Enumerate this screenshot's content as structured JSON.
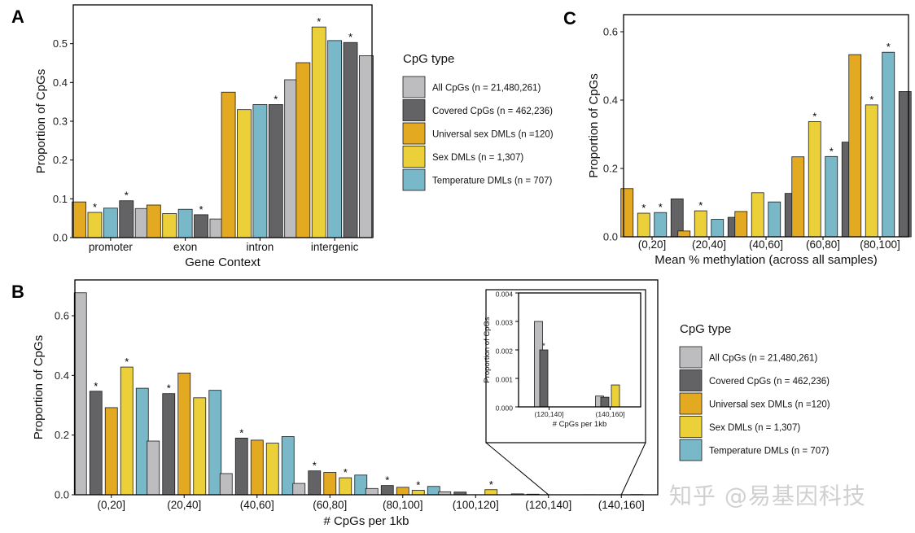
{
  "colors": {
    "All CpGs": "#bdbdbf",
    "Covered CpGs": "#636365",
    "Universal sex DMLs": "#e2a921",
    "Sex DMLs": "#ecd039",
    "Temperature DMLs": "#78b8c8"
  },
  "watermark": "知乎 @易基因科技",
  "chart_data": [
    {
      "id": "A",
      "panel_label": "A",
      "type": "bar",
      "xlabel": "Gene Context",
      "ylabel": "Proportion of CpGs",
      "ylim": [
        0,
        0.6
      ],
      "yticks": [
        "0.0",
        "0.1",
        "0.2",
        "0.3",
        "0.4",
        "0.5"
      ],
      "categories": [
        "promoter",
        "exon",
        "intron",
        "intergenic"
      ],
      "series": [
        {
          "name": "Universal sex DMLs",
          "values": [
            0.092,
            0.084,
            0.375,
            0.451
          ],
          "stars": [
            false,
            false,
            false,
            false
          ]
        },
        {
          "name": "Sex DMLs",
          "values": [
            0.065,
            0.062,
            0.33,
            0.543
          ],
          "stars": [
            true,
            false,
            false,
            true
          ]
        },
        {
          "name": "Temperature DMLs",
          "values": [
            0.076,
            0.073,
            0.343,
            0.508
          ],
          "stars": [
            false,
            false,
            false,
            false
          ]
        },
        {
          "name": "Covered CpGs",
          "values": [
            0.095,
            0.059,
            0.343,
            0.503
          ],
          "stars": [
            true,
            true,
            true,
            true
          ]
        },
        {
          "name": "All CpGs",
          "values": [
            0.075,
            0.048,
            0.407,
            0.469
          ],
          "stars": [
            false,
            false,
            false,
            false
          ]
        }
      ]
    },
    {
      "id": "C",
      "panel_label": "C",
      "type": "bar",
      "xlabel": "Mean % methylation (across all samples)",
      "ylabel": "Proportion of CpGs",
      "ylim": [
        0,
        0.65
      ],
      "yticks": [
        "0.0",
        "0.2",
        "0.4",
        "0.6"
      ],
      "categories": [
        "(0,20]",
        "(20,40]",
        "(40,60]",
        "(60,80]",
        "(80,100]"
      ],
      "series": [
        {
          "name": "Universal sex DMLs",
          "values": [
            0.141,
            0.017,
            0.074,
            0.234,
            0.533
          ],
          "stars": [
            false,
            false,
            false,
            false,
            false
          ]
        },
        {
          "name": "Sex DMLs",
          "values": [
            0.069,
            0.076,
            0.129,
            0.337,
            0.386
          ],
          "stars": [
            true,
            true,
            false,
            true,
            true
          ]
        },
        {
          "name": "Temperature DMLs",
          "values": [
            0.071,
            0.051,
            0.102,
            0.235,
            0.54
          ],
          "stars": [
            true,
            false,
            false,
            true,
            true
          ]
        },
        {
          "name": "Covered CpGs",
          "values": [
            0.111,
            0.057,
            0.127,
            0.277,
            0.425
          ],
          "stars": [
            false,
            false,
            false,
            false,
            false
          ]
        }
      ]
    },
    {
      "id": "B",
      "panel_label": "B",
      "type": "bar",
      "xlabel": "# CpGs per 1kb",
      "ylabel": "Proportion of CpGs",
      "ylim": [
        0,
        0.72
      ],
      "yticks": [
        "0.0",
        "0.2",
        "0.4",
        "0.6"
      ],
      "categories": [
        "(0,20]",
        "(20,40]",
        "(40,60]",
        "(60,80]",
        "(80,100]",
        "(100,120]",
        "(120,140]",
        "(140,160]"
      ],
      "series": [
        {
          "name": "All CpGs",
          "values": [
            0.677,
            0.18,
            0.071,
            0.038,
            0.021,
            0.01,
            0.003,
            0.0004
          ],
          "stars": [
            false,
            false,
            false,
            false,
            false,
            false,
            false,
            false
          ]
        },
        {
          "name": "Covered CpGs",
          "values": [
            0.347,
            0.339,
            0.19,
            0.08,
            0.031,
            0.009,
            0.002,
            0.0003
          ],
          "stars": [
            true,
            true,
            true,
            true,
            true,
            false,
            false,
            false
          ]
        },
        {
          "name": "Universal sex DMLs",
          "values": [
            0.292,
            0.408,
            0.183,
            0.075,
            0.025,
            0.0,
            0.0,
            0.0
          ],
          "stars": [
            false,
            false,
            false,
            false,
            false,
            false,
            false,
            false
          ]
        },
        {
          "name": "Sex DMLs",
          "values": [
            0.428,
            0.325,
            0.173,
            0.057,
            0.015,
            0.017,
            0.0,
            0.0008
          ],
          "stars": [
            true,
            false,
            false,
            true,
            true,
            true,
            false,
            false
          ]
        },
        {
          "name": "Temperature DMLs",
          "values": [
            0.357,
            0.35,
            0.195,
            0.066,
            0.028,
            0.0,
            0.0,
            0.0
          ],
          "stars": [
            false,
            false,
            false,
            false,
            false,
            false,
            false,
            false
          ]
        }
      ]
    },
    {
      "id": "B-inset",
      "type": "bar",
      "xlabel": "# CpGs per 1kb",
      "ylabel": "Proportion of CpGs",
      "ylim": [
        0,
        0.004
      ],
      "yticks": [
        "0.000",
        "0.001",
        "0.002",
        "0.003",
        "0.004"
      ],
      "categories": [
        "(120,140]",
        "(140,160]"
      ],
      "series": [
        {
          "name": "All CpGs",
          "values": [
            0.003,
            0.00038
          ],
          "stars": [
            false,
            false
          ]
        },
        {
          "name": "Covered CpGs",
          "values": [
            0.002,
            0.00034
          ],
          "stars": [
            true,
            false
          ]
        },
        {
          "name": "Universal sex DMLs",
          "values": [
            0.0,
            0.0
          ],
          "stars": [
            false,
            false
          ]
        },
        {
          "name": "Sex DMLs",
          "values": [
            0.0,
            0.00077
          ],
          "stars": [
            false,
            false
          ]
        },
        {
          "name": "Temperature DMLs",
          "values": [
            0.0,
            0.0
          ],
          "stars": [
            false,
            false
          ]
        }
      ]
    }
  ],
  "legends": [
    {
      "id": "legend-top",
      "title": "CpG type",
      "items": [
        {
          "key": "All CpGs",
          "label": "All CpGs (n = 21,480,261)"
        },
        {
          "key": "Covered CpGs",
          "label": "Covered CpGs (n = 462,236)"
        },
        {
          "key": "Universal sex DMLs",
          "label": "Universal sex DMLs (n =120)"
        },
        {
          "key": "Sex DMLs",
          "label": "Sex DMLs (n = 1,307)"
        },
        {
          "key": "Temperature DMLs",
          "label": "Temperature DMLs (n = 707)"
        }
      ]
    },
    {
      "id": "legend-bottom",
      "title": "CpG type",
      "items": [
        {
          "key": "All CpGs",
          "label": "All CpGs (n = 21,480,261)"
        },
        {
          "key": "Covered CpGs",
          "label": "Covered CpGs (n = 462,236)"
        },
        {
          "key": "Universal sex DMLs",
          "label": "Universal sex DMLs (n =120)"
        },
        {
          "key": "Sex DMLs",
          "label": "Sex DMLs (n = 1,307)"
        },
        {
          "key": "Temperature DMLs",
          "label": "Temperature DMLs (n = 707)"
        }
      ]
    }
  ]
}
